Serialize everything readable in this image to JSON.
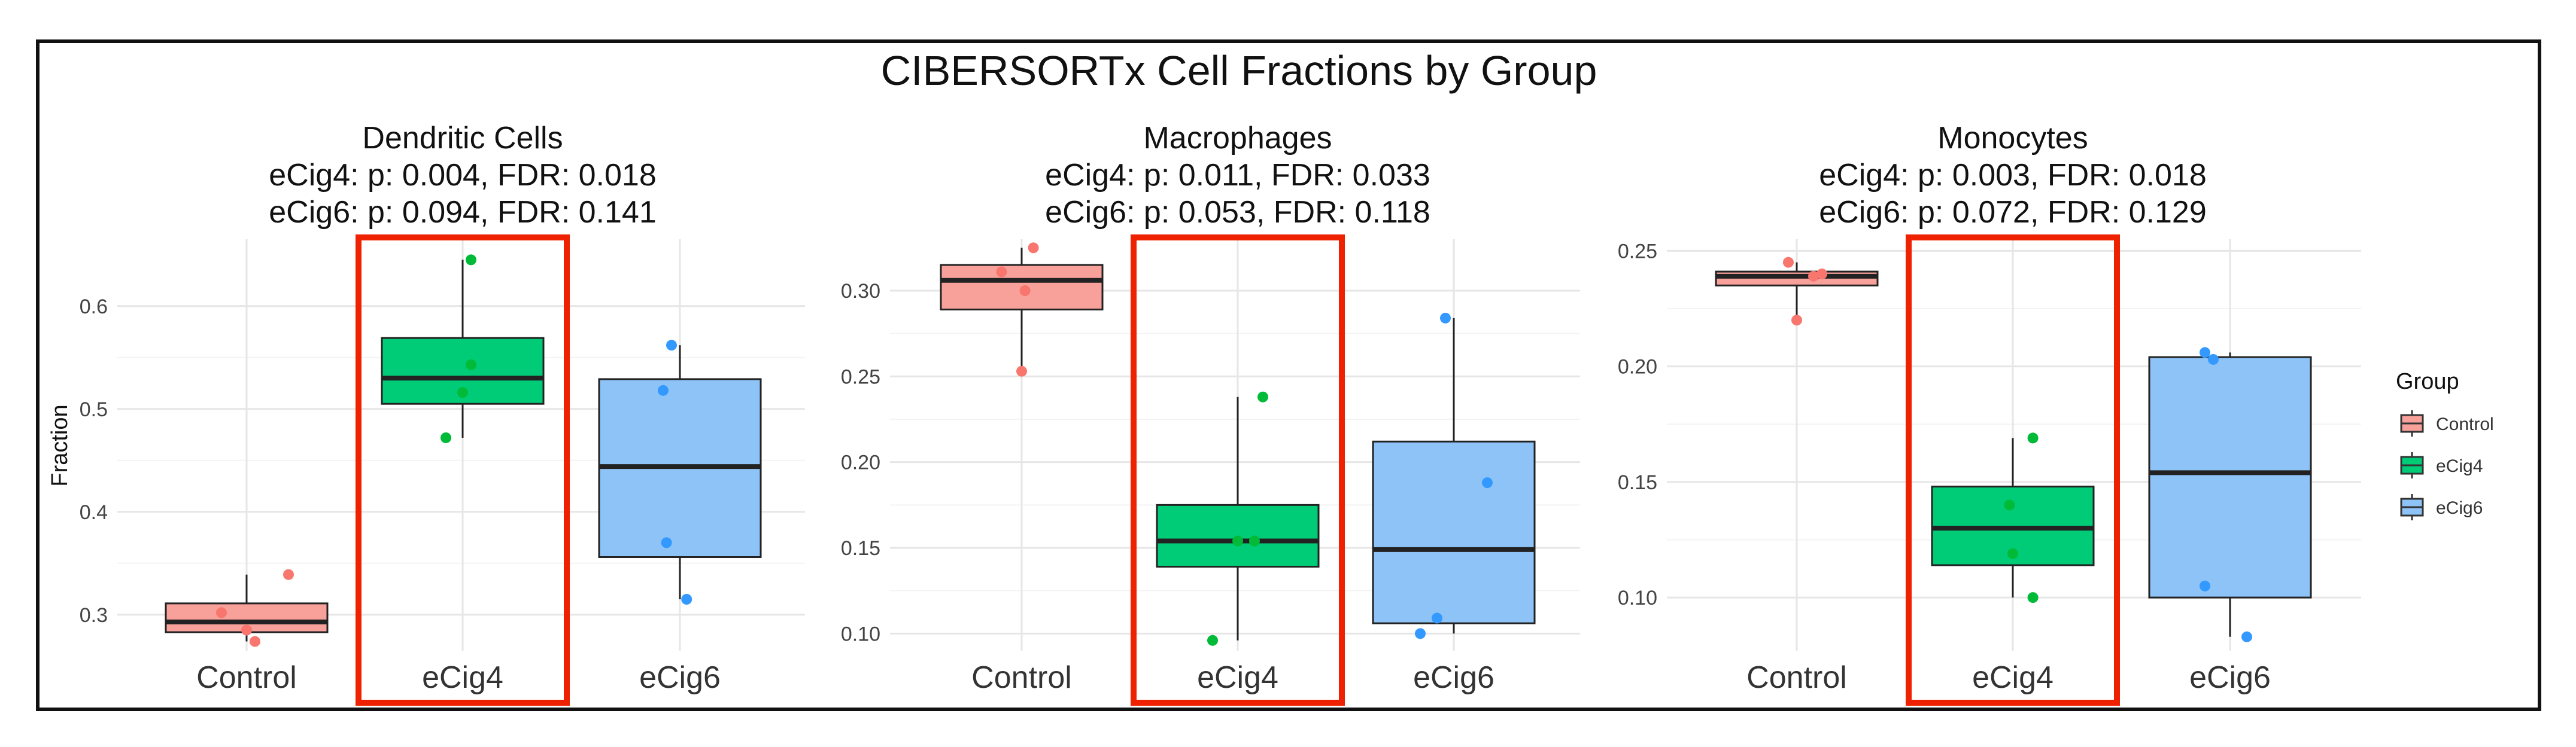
{
  "title": "CIBERSORTx Cell Fractions by Group",
  "legend": {
    "title": "Group",
    "position": "right",
    "items": [
      {
        "label": "Control",
        "color": "#F8A09A"
      },
      {
        "label": "eCig4",
        "color": "#00CC77"
      },
      {
        "label": "eCig6",
        "color": "#8DC3F7"
      }
    ]
  },
  "colors": {
    "Control_fill": "#F8A09A",
    "Control_point": "#F8766D",
    "eCig4_fill": "#00CC77",
    "eCig4_point": "#00BA38",
    "eCig6_fill": "#8DC3F7",
    "eCig6_point": "#3399FF",
    "highlight": "#EE2200"
  },
  "chart_data": [
    {
      "type": "box",
      "title": "Dendritic Cells",
      "subtitle_lines": [
        "eCig4: p: 0.004, FDR: 0.018",
        "eCig6: p: 0.094, FDR: 0.141"
      ],
      "ylabel": "Fraction",
      "ylim": [
        0.265,
        0.665
      ],
      "yticks": [
        0.3,
        0.4,
        0.5,
        0.6
      ],
      "yticklabels": [
        "0.3",
        "0.4",
        "0.5",
        "0.6"
      ],
      "grid": true,
      "highlighted_category": "eCig4",
      "categories": [
        "Control",
        "eCig4",
        "eCig6"
      ],
      "boxes": [
        {
          "group": "Control",
          "whisker_low": 0.274,
          "q1": 0.283,
          "median": 0.293,
          "q3": 0.311,
          "whisker_high": 0.339
        },
        {
          "group": "eCig4",
          "whisker_low": 0.472,
          "q1": 0.505,
          "median": 0.53,
          "q3": 0.569,
          "whisker_high": 0.645
        },
        {
          "group": "eCig6",
          "whisker_low": 0.315,
          "q1": 0.356,
          "median": 0.444,
          "q3": 0.529,
          "whisker_high": 0.562
        }
      ],
      "points": [
        {
          "group": "Control",
          "x_offset": -0.15,
          "y": 0.302
        },
        {
          "group": "Control",
          "x_offset": 0.05,
          "y": 0.274
        },
        {
          "group": "Control",
          "x_offset": 0.0,
          "y": 0.285
        },
        {
          "group": "Control",
          "x_offset": 0.25,
          "y": 0.339
        },
        {
          "group": "eCig4",
          "x_offset": -0.1,
          "y": 0.472
        },
        {
          "group": "eCig4",
          "x_offset": 0.0,
          "y": 0.516
        },
        {
          "group": "eCig4",
          "x_offset": 0.05,
          "y": 0.543
        },
        {
          "group": "eCig4",
          "x_offset": 0.05,
          "y": 0.645
        },
        {
          "group": "eCig6",
          "x_offset": -0.1,
          "y": 0.518
        },
        {
          "group": "eCig6",
          "x_offset": -0.08,
          "y": 0.37
        },
        {
          "group": "eCig6",
          "x_offset": 0.04,
          "y": 0.315
        },
        {
          "group": "eCig6",
          "x_offset": -0.05,
          "y": 0.562
        }
      ]
    },
    {
      "type": "box",
      "title": "Macrophages",
      "subtitle_lines": [
        "eCig4: p: 0.011, FDR: 0.033",
        "eCig6: p: 0.053, FDR: 0.118"
      ],
      "ylabel": "",
      "ylim": [
        0.09,
        0.33
      ],
      "yticks": [
        0.1,
        0.15,
        0.2,
        0.25,
        0.3
      ],
      "yticklabels": [
        "0.10",
        "0.15",
        "0.20",
        "0.25",
        "0.30"
      ],
      "grid": true,
      "highlighted_category": "eCig4",
      "categories": [
        "Control",
        "eCig4",
        "eCig6"
      ],
      "boxes": [
        {
          "group": "Control",
          "whisker_low": 0.253,
          "q1": 0.289,
          "median": 0.306,
          "q3": 0.315,
          "whisker_high": 0.325
        },
        {
          "group": "eCig4",
          "whisker_low": 0.096,
          "q1": 0.139,
          "median": 0.154,
          "q3": 0.175,
          "whisker_high": 0.238
        },
        {
          "group": "eCig6",
          "whisker_low": 0.1,
          "q1": 0.106,
          "median": 0.149,
          "q3": 0.212,
          "whisker_high": 0.284
        }
      ],
      "points": [
        {
          "group": "Control",
          "x_offset": 0.0,
          "y": 0.253
        },
        {
          "group": "Control",
          "x_offset": -0.12,
          "y": 0.311
        },
        {
          "group": "Control",
          "x_offset": 0.02,
          "y": 0.3
        },
        {
          "group": "Control",
          "x_offset": 0.07,
          "y": 0.325
        },
        {
          "group": "eCig4",
          "x_offset": -0.15,
          "y": 0.096
        },
        {
          "group": "eCig4",
          "x_offset": 0.0,
          "y": 0.154
        },
        {
          "group": "eCig4",
          "x_offset": 0.1,
          "y": 0.154
        },
        {
          "group": "eCig4",
          "x_offset": 0.15,
          "y": 0.238
        },
        {
          "group": "eCig6",
          "x_offset": -0.2,
          "y": 0.1
        },
        {
          "group": "eCig6",
          "x_offset": -0.1,
          "y": 0.109
        },
        {
          "group": "eCig6",
          "x_offset": 0.2,
          "y": 0.188
        },
        {
          "group": "eCig6",
          "x_offset": -0.05,
          "y": 0.284
        }
      ]
    },
    {
      "type": "box",
      "title": "Monocytes",
      "subtitle_lines": [
        "eCig4: p: 0.003, FDR: 0.018",
        "eCig6: p: 0.072, FDR: 0.129"
      ],
      "ylabel": "",
      "ylim": [
        0.077,
        0.255
      ],
      "yticks": [
        0.1,
        0.15,
        0.2,
        0.25
      ],
      "yticklabels": [
        "0.10",
        "0.15",
        "0.20",
        "0.25"
      ],
      "grid": true,
      "highlighted_category": "eCig4",
      "categories": [
        "Control",
        "eCig4",
        "eCig6"
      ],
      "boxes": [
        {
          "group": "Control",
          "whisker_low": 0.22,
          "q1": 0.235,
          "median": 0.239,
          "q3": 0.241,
          "whisker_high": 0.245
        },
        {
          "group": "eCig4",
          "whisker_low": 0.1,
          "q1": 0.114,
          "median": 0.13,
          "q3": 0.148,
          "whisker_high": 0.169
        },
        {
          "group": "eCig6",
          "whisker_low": 0.083,
          "q1": 0.1,
          "median": 0.154,
          "q3": 0.204,
          "whisker_high": 0.206
        }
      ],
      "points": [
        {
          "group": "Control",
          "x_offset": -0.05,
          "y": 0.245
        },
        {
          "group": "Control",
          "x_offset": 0.0,
          "y": 0.22
        },
        {
          "group": "Control",
          "x_offset": 0.1,
          "y": 0.239
        },
        {
          "group": "Control",
          "x_offset": 0.15,
          "y": 0.24
        },
        {
          "group": "eCig4",
          "x_offset": 0.0,
          "y": 0.119
        },
        {
          "group": "eCig4",
          "x_offset": -0.02,
          "y": 0.14
        },
        {
          "group": "eCig4",
          "x_offset": 0.12,
          "y": 0.1
        },
        {
          "group": "eCig4",
          "x_offset": 0.12,
          "y": 0.169
        },
        {
          "group": "eCig6",
          "x_offset": -0.15,
          "y": 0.105
        },
        {
          "group": "eCig6",
          "x_offset": -0.15,
          "y": 0.206
        },
        {
          "group": "eCig6",
          "x_offset": -0.1,
          "y": 0.203
        },
        {
          "group": "eCig6",
          "x_offset": 0.1,
          "y": 0.083
        }
      ]
    }
  ]
}
